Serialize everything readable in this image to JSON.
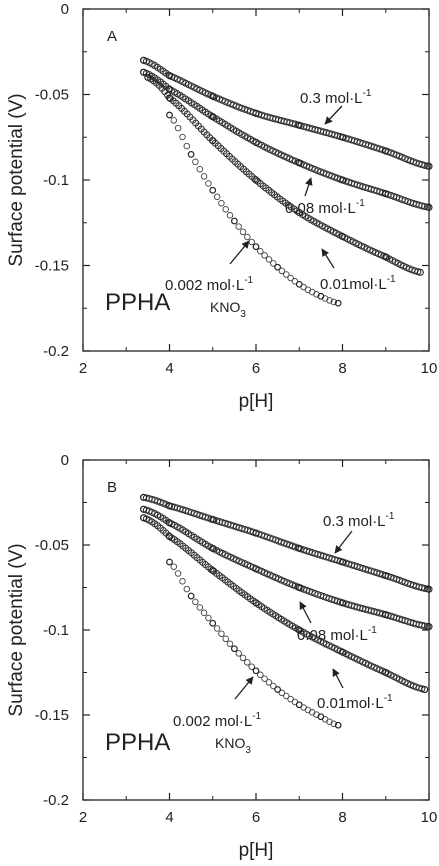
{
  "chart_data": [
    {
      "type": "scatter",
      "panel_label": "A",
      "xlabel": "p[H]",
      "ylabel": "Surface potential (V)",
      "xlim": [
        2,
        10
      ],
      "ylim": [
        -0.2,
        0
      ],
      "x_ticks": [
        "2",
        "4",
        "6",
        "8",
        "10"
      ],
      "y_ticks": [
        "0",
        "-0.05",
        "-0.1",
        "-0.15",
        "-0.2"
      ],
      "grid": false,
      "annotation_main": "PPHA",
      "series": [
        {
          "name": "0.3 mol·L-1",
          "label_text": "0.3 mol·L",
          "label_sup": "-1",
          "marker": "dense",
          "x": [
            3.4,
            4,
            5,
            6,
            7,
            8,
            9,
            10
          ],
          "y": [
            -0.03,
            -0.039,
            -0.051,
            -0.061,
            -0.068,
            -0.075,
            -0.083,
            -0.092
          ]
        },
        {
          "name": "0.08 mol·L-1",
          "label_text": "0.08 mol·L",
          "label_sup": "-1",
          "marker": "dense",
          "x": [
            3.4,
            4,
            5,
            6,
            7,
            8,
            9,
            10
          ],
          "y": [
            -0.037,
            -0.047,
            -0.063,
            -0.078,
            -0.09,
            -0.1,
            -0.108,
            -0.116
          ]
        },
        {
          "name": "0.01 mol·L-1",
          "label_text": "0.01mol·L",
          "label_sup": "-1",
          "marker": "dense",
          "x": [
            3.5,
            4,
            5,
            6,
            7,
            8,
            9,
            9.8
          ],
          "y": [
            -0.04,
            -0.052,
            -0.077,
            -0.1,
            -0.119,
            -0.133,
            -0.145,
            -0.154
          ]
        },
        {
          "name": "0.002 mol·L-1 KNO3",
          "label_text": "0.002 mol·L",
          "label_sup": "-1",
          "label_line2": "KNO",
          "label_sub": "3",
          "marker": "open",
          "x": [
            4.0,
            4.5,
            5,
            5.5,
            6,
            6.5,
            7,
            7.5,
            7.9
          ],
          "y": [
            -0.062,
            -0.085,
            -0.106,
            -0.124,
            -0.139,
            -0.151,
            -0.161,
            -0.168,
            -0.172
          ]
        }
      ]
    },
    {
      "type": "scatter",
      "panel_label": "B",
      "xlabel": "p[H]",
      "ylabel": "Surface potential (V)",
      "xlim": [
        2,
        10
      ],
      "ylim": [
        -0.2,
        0
      ],
      "x_ticks": [
        "2",
        "4",
        "6",
        "8",
        "10"
      ],
      "y_ticks": [
        "0",
        "-0.05",
        "-0.1",
        "-0.15",
        "-0.2"
      ],
      "grid": false,
      "annotation_main": "PPHA",
      "series": [
        {
          "name": "0.3 mol·L-1",
          "label_text": "0.3 mol·L",
          "label_sup": "-1",
          "marker": "dense",
          "x": [
            3.4,
            4,
            5,
            6,
            7,
            8,
            9,
            10
          ],
          "y": [
            -0.022,
            -0.027,
            -0.035,
            -0.043,
            -0.052,
            -0.06,
            -0.068,
            -0.076
          ]
        },
        {
          "name": "0.08 mol·L-1",
          "label_text": "0.08 mol·L",
          "label_sup": "-1",
          "marker": "dense",
          "x": [
            3.4,
            4,
            5,
            6,
            7,
            8,
            9,
            10
          ],
          "y": [
            -0.029,
            -0.037,
            -0.052,
            -0.064,
            -0.075,
            -0.084,
            -0.091,
            -0.098
          ]
        },
        {
          "name": "0.01 mol·L-1",
          "label_text": "0.01mol·L",
          "label_sup": "-1",
          "marker": "dense",
          "x": [
            3.4,
            4,
            5,
            6,
            7,
            8,
            9,
            9.9
          ],
          "y": [
            -0.034,
            -0.045,
            -0.065,
            -0.084,
            -0.1,
            -0.113,
            -0.125,
            -0.135
          ]
        },
        {
          "name": "0.002 mol·L-1 KNO3",
          "label_text": "0.002 mol·L",
          "label_sup": "-1",
          "label_line2": "KNO",
          "label_sub": "3",
          "marker": "open",
          "x": [
            4.0,
            4.5,
            5,
            5.5,
            6,
            6.5,
            7,
            7.5,
            7.9
          ],
          "y": [
            -0.06,
            -0.08,
            -0.096,
            -0.111,
            -0.124,
            -0.135,
            -0.144,
            -0.151,
            -0.156
          ]
        }
      ]
    }
  ]
}
